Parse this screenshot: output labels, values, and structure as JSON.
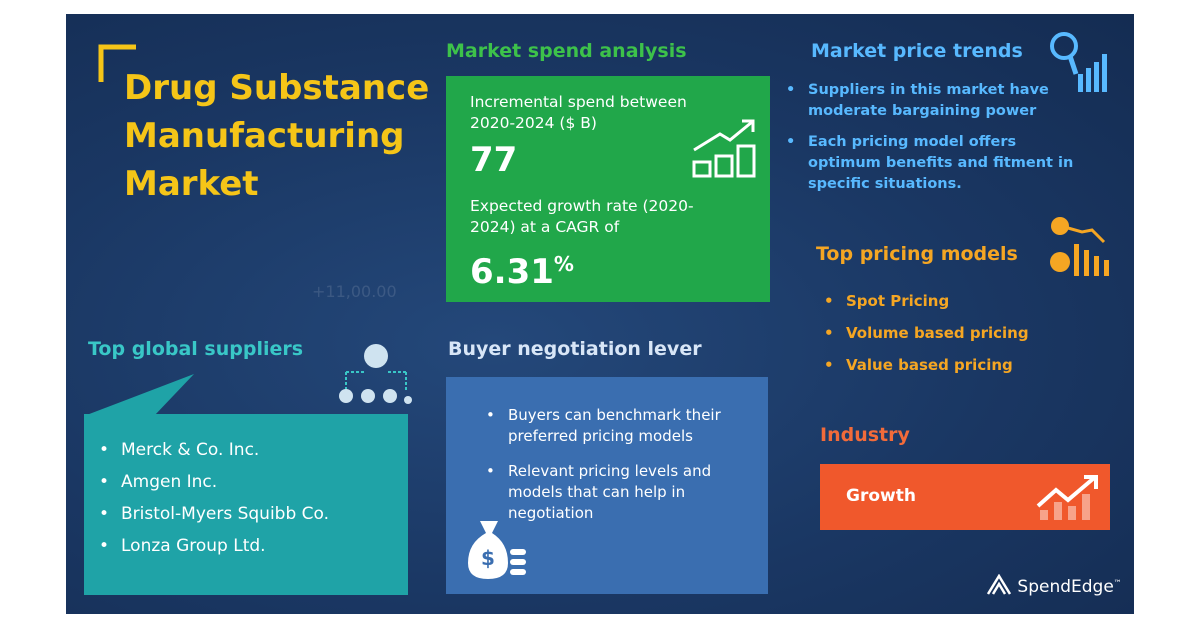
{
  "title": {
    "lines": [
      "Drug Substance",
      "Manufacturing",
      "Market"
    ]
  },
  "background_text": "+11,00.00",
  "market_spend": {
    "heading": "Market spend analysis",
    "spend_label": "Incremental spend between 2020-2024 ($ B)",
    "spend_value": "77",
    "growth_label": "Expected growth rate (2020-2024) at a CAGR of",
    "growth_value": "6.31",
    "growth_unit": "%"
  },
  "price_trends": {
    "heading": "Market price trends",
    "items": [
      "Suppliers in this market have moderate bargaining power",
      "Each pricing model offers optimum benefits and fitment in specific situations."
    ]
  },
  "pricing_models": {
    "heading": "Top pricing models",
    "items": [
      "Spot Pricing",
      "Volume based pricing",
      "Value based pricing"
    ]
  },
  "industry": {
    "heading": "Industry",
    "label": "Growth"
  },
  "suppliers": {
    "heading": "Top global suppliers",
    "items": [
      "Merck & Co. Inc.",
      "Amgen Inc.",
      "Bristol-Myers Squibb Co.",
      "Lonza Group Ltd."
    ]
  },
  "negotiation": {
    "heading": "Buyer negotiation lever",
    "items": [
      "Buyers can benchmark their preferred pricing models",
      "Relevant pricing levels and models that can help in negotiation"
    ]
  },
  "logo": {
    "name": "SpendEdge",
    "mark": "™"
  }
}
